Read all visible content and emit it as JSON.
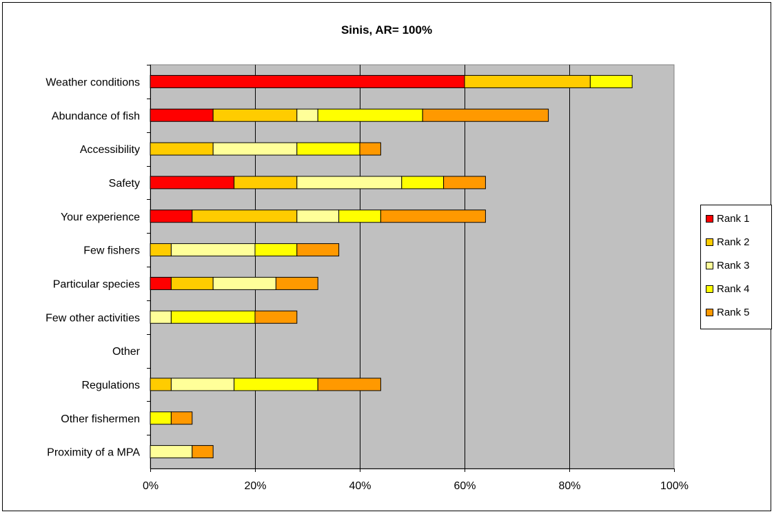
{
  "chart_data": {
    "type": "bar",
    "orientation": "horizontal",
    "stacked": true,
    "title": "Sinis, AR= 100%",
    "xlabel": "",
    "ylabel": "",
    "xlim": [
      0,
      100
    ],
    "x_ticks": [
      "0%",
      "20%",
      "40%",
      "60%",
      "80%",
      "100%"
    ],
    "x_tick_values": [
      0,
      20,
      40,
      60,
      80,
      100
    ],
    "grid": true,
    "legend_position": "right",
    "categories": [
      "Weather conditions",
      "Abundance of fish",
      "Accessibility",
      "Safety",
      "Your experience",
      "Few fishers",
      "Particular species",
      "Few other activities",
      "Other",
      "Regulations",
      "Other fishermen",
      "Proximity of a MPA"
    ],
    "series": [
      {
        "name": "Rank 1",
        "color": "#ff0000",
        "values": [
          60,
          12,
          0,
          16,
          8,
          0,
          4,
          0,
          0,
          0,
          0,
          0
        ]
      },
      {
        "name": "Rank 2",
        "color": "#ffcc00",
        "values": [
          24,
          16,
          12,
          12,
          20,
          4,
          8,
          0,
          0,
          4,
          0,
          0
        ]
      },
      {
        "name": "Rank 3",
        "color": "#ffff99",
        "values": [
          0,
          4,
          16,
          20,
          8,
          16,
          12,
          4,
          0,
          12,
          0,
          8
        ]
      },
      {
        "name": "Rank 4",
        "color": "#ffff00",
        "values": [
          8,
          20,
          12,
          8,
          8,
          8,
          0,
          16,
          0,
          16,
          4,
          0
        ]
      },
      {
        "name": "Rank 5",
        "color": "#ff9900",
        "values": [
          0,
          24,
          4,
          8,
          20,
          8,
          8,
          8,
          0,
          12,
          4,
          4
        ]
      }
    ],
    "plot_background": "#c0c0c0"
  }
}
